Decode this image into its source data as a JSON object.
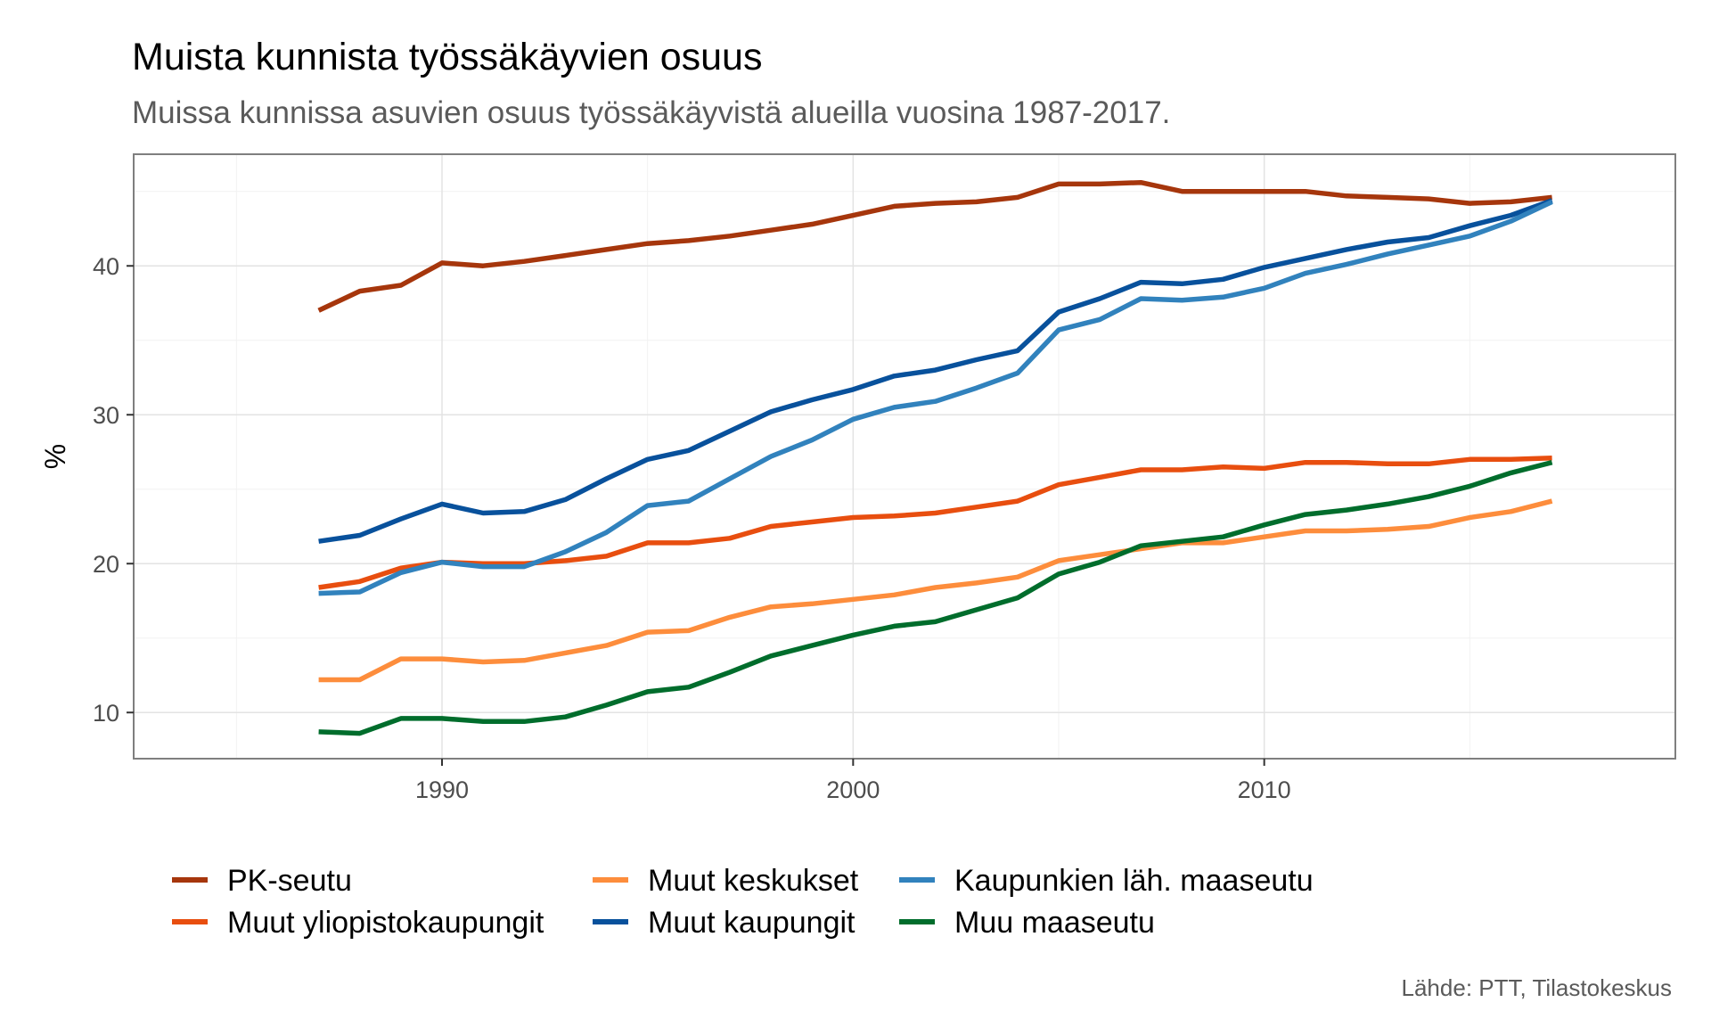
{
  "chart_data": {
    "type": "line",
    "title": "Muista kunnista työssäkäyvien osuus",
    "subtitle": "Muissa kunnissa asuvien osuus työssäkäyvistä alueilla vuosina 1987-2017.",
    "caption": "Lähde: PTT, Tilastokeskus",
    "xlabel": "",
    "ylabel": "%",
    "xlim": [
      1982.5,
      2020
    ],
    "ylim": [
      6.9,
      47.5
    ],
    "x_ticks": [
      1990,
      2000,
      2010
    ],
    "y_ticks": [
      10,
      20,
      30,
      40
    ],
    "grid": true,
    "legend_position": "bottom",
    "x": [
      1987,
      1988,
      1989,
      1990,
      1991,
      1992,
      1993,
      1994,
      1995,
      1996,
      1997,
      1998,
      1999,
      2000,
      2001,
      2002,
      2003,
      2004,
      2005,
      2006,
      2007,
      2008,
      2009,
      2010,
      2011,
      2012,
      2013,
      2014,
      2015,
      2016,
      2017
    ],
    "series": [
      {
        "name": "PK-seutu",
        "color": "#a6360c",
        "values": [
          37.0,
          38.3,
          38.7,
          40.2,
          40.0,
          40.3,
          40.7,
          41.1,
          41.5,
          41.7,
          42.0,
          42.4,
          42.8,
          43.4,
          44.0,
          44.2,
          44.3,
          44.6,
          45.5,
          45.5,
          45.6,
          45.0,
          45.0,
          45.0,
          45.0,
          44.7,
          44.6,
          44.5,
          44.2,
          44.3,
          44.6
        ]
      },
      {
        "name": "Muut yliopistokaupungit",
        "color": "#e84e0f",
        "values": [
          18.4,
          18.8,
          19.7,
          20.1,
          20.0,
          20.0,
          20.2,
          20.5,
          21.4,
          21.4,
          21.7,
          22.5,
          22.8,
          23.1,
          23.2,
          23.4,
          23.8,
          24.2,
          25.3,
          25.8,
          26.3,
          26.3,
          26.5,
          26.4,
          26.8,
          26.8,
          26.7,
          26.7,
          27.0,
          27.0,
          27.1
        ]
      },
      {
        "name": "Muut keskukset",
        "color": "#fd8d3c",
        "values": [
          12.2,
          12.2,
          13.6,
          13.6,
          13.4,
          13.5,
          14.0,
          14.5,
          15.4,
          15.5,
          16.4,
          17.1,
          17.3,
          17.6,
          17.9,
          18.4,
          18.7,
          19.1,
          20.2,
          20.6,
          21.0,
          21.4,
          21.4,
          21.8,
          22.2,
          22.2,
          22.3,
          22.5,
          23.1,
          23.5,
          24.2
        ]
      },
      {
        "name": "Muut kaupungit",
        "color": "#08519c",
        "values": [
          21.5,
          21.9,
          23.0,
          24.0,
          23.4,
          23.5,
          24.3,
          25.7,
          27.0,
          27.6,
          28.9,
          30.2,
          31.0,
          31.7,
          32.6,
          33.0,
          33.7,
          34.3,
          36.9,
          37.8,
          38.9,
          38.8,
          39.1,
          39.9,
          40.5,
          41.1,
          41.6,
          41.9,
          42.7,
          43.4,
          44.4
        ]
      },
      {
        "name": "Kaupunkien läh. maaseutu",
        "color": "#3182bd",
        "values": [
          18.0,
          18.1,
          19.4,
          20.1,
          19.8,
          19.8,
          20.8,
          22.1,
          23.9,
          24.2,
          25.7,
          27.2,
          28.3,
          29.7,
          30.5,
          30.9,
          31.8,
          32.8,
          35.7,
          36.4,
          37.8,
          37.7,
          37.9,
          38.5,
          39.5,
          40.1,
          40.8,
          41.4,
          42.0,
          43.0,
          44.3
        ]
      },
      {
        "name": "Muu maaseutu",
        "color": "#006d2c",
        "values": [
          8.7,
          8.6,
          9.6,
          9.6,
          9.4,
          9.4,
          9.7,
          10.5,
          11.4,
          11.7,
          12.7,
          13.8,
          14.5,
          15.2,
          15.8,
          16.1,
          16.9,
          17.7,
          19.3,
          20.1,
          21.2,
          21.5,
          21.8,
          22.6,
          23.3,
          23.6,
          24.0,
          24.5,
          25.2,
          26.1,
          26.8
        ]
      }
    ]
  }
}
